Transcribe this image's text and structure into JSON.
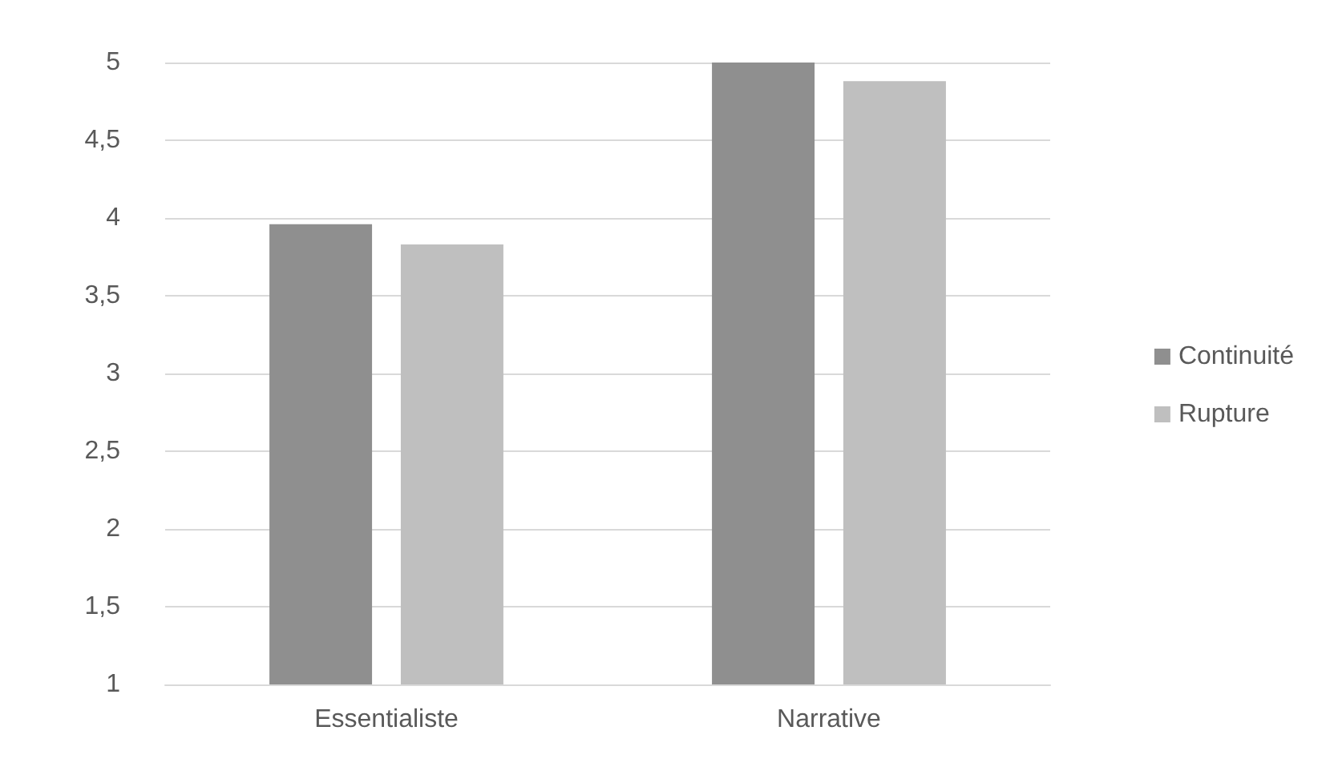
{
  "chart_data": {
    "type": "bar",
    "categories": [
      "Essentialiste",
      "Narrative"
    ],
    "series": [
      {
        "name": "Continuité",
        "color": "#8f8f8f",
        "values": [
          3.96,
          5.0
        ]
      },
      {
        "name": "Rupture",
        "color": "#bfbfbf",
        "values": [
          3.83,
          4.88
        ]
      }
    ],
    "ylim": [
      1,
      5
    ],
    "yticks": [
      1,
      {
        "value": 1.5,
        "label": "1,5"
      },
      2,
      {
        "value": 2.5,
        "label": "2,5"
      },
      3,
      {
        "value": 3.5,
        "label": "3,5"
      },
      4,
      {
        "value": 4.5,
        "label": "4,5"
      },
      5
    ],
    "grid": "y",
    "legend": "right"
  }
}
